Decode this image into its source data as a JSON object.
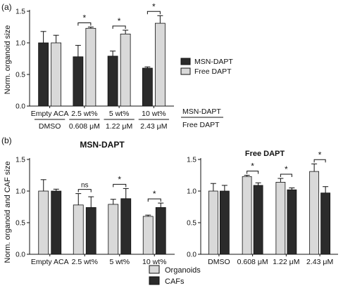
{
  "colors": {
    "dark": "#2b2b2b",
    "light": "#d9d9d9",
    "edge": "#111111"
  },
  "chart_data": [
    {
      "panel": "(a)",
      "type": "bar",
      "ylabel": "Norm. organoid size",
      "ylim": [
        0,
        1.5
      ],
      "yticks": [
        "0.0",
        "0.5",
        "1.0",
        "1.5"
      ],
      "ytick_values": [
        0,
        0.5,
        1.0,
        1.5
      ],
      "categories": [
        "Empty ACA",
        "2.5 wt%",
        "5 wt%",
        "10 wt%"
      ],
      "categories2": [
        "DMSO",
        "0.608 μM",
        "1.22 μM",
        "2.43 μM"
      ],
      "row_labels": [
        "MSN-DAPT",
        "Free DAPT"
      ],
      "series": [
        {
          "name": "MSN-DAPT",
          "color": "dark",
          "values": [
            1.0,
            0.78,
            0.79,
            0.6
          ],
          "err": [
            0.18,
            0.18,
            0.08,
            0.02
          ]
        },
        {
          "name": "Free DAPT",
          "color": "light",
          "values": [
            1.0,
            1.23,
            1.14,
            1.31
          ],
          "err": [
            0.12,
            0.02,
            0.06,
            0.12
          ]
        }
      ],
      "significance": [
        {
          "group": 1,
          "label": "*"
        },
        {
          "group": 2,
          "label": "*"
        },
        {
          "group": 3,
          "label": "*"
        }
      ],
      "legend": "right"
    },
    {
      "panel": "(b)",
      "type": "bar",
      "title": "MSN-DAPT",
      "ylabel": "Norm. organoid and CAF size",
      "ylim": [
        0,
        1.5
      ],
      "yticks": [
        "0.0",
        "0.5",
        "1.0",
        "1.5"
      ],
      "ytick_values": [
        0,
        0.5,
        1.0,
        1.5
      ],
      "categories": [
        "Empty ACA",
        "2.5 wt%",
        "5 wt%",
        "10 wt%"
      ],
      "series": [
        {
          "name": "Organoids",
          "color": "light",
          "values": [
            1.0,
            0.78,
            0.79,
            0.6
          ],
          "err": [
            0.18,
            0.18,
            0.08,
            0.02
          ]
        },
        {
          "name": "CAFs",
          "color": "dark",
          "values": [
            1.0,
            0.74,
            0.88,
            0.74
          ],
          "err": [
            0.03,
            0.17,
            0.16,
            0.07
          ]
        }
      ],
      "significance": [
        {
          "group": 1,
          "label": "ns"
        },
        {
          "group": 2,
          "label": "*"
        },
        {
          "group": 3,
          "label": "*"
        }
      ]
    },
    {
      "panel": "",
      "type": "bar",
      "title": "Free DAPT",
      "ylim": [
        0,
        1.5
      ],
      "yticks": [
        "0.0",
        "0.5",
        "1.0",
        "1.5"
      ],
      "ytick_values": [
        0,
        0.5,
        1.0,
        1.5
      ],
      "categories": [
        "DMSO",
        "0.608 μM",
        "1.22 μM",
        "2.43 μM"
      ],
      "series": [
        {
          "name": "Organoids",
          "color": "light",
          "values": [
            1.0,
            1.23,
            1.14,
            1.31
          ],
          "err": [
            0.12,
            0.02,
            0.06,
            0.12
          ]
        },
        {
          "name": "CAFs",
          "color": "dark",
          "values": [
            1.0,
            1.09,
            1.02,
            0.97
          ],
          "err": [
            0.09,
            0.04,
            0.03,
            0.1
          ]
        }
      ],
      "significance": [
        {
          "group": 1,
          "label": "*"
        },
        {
          "group": 2,
          "label": "*"
        },
        {
          "group": 3,
          "label": "*"
        }
      ],
      "legend": "bottom",
      "legend_entries": [
        "Organoids",
        "CAFs"
      ]
    }
  ]
}
